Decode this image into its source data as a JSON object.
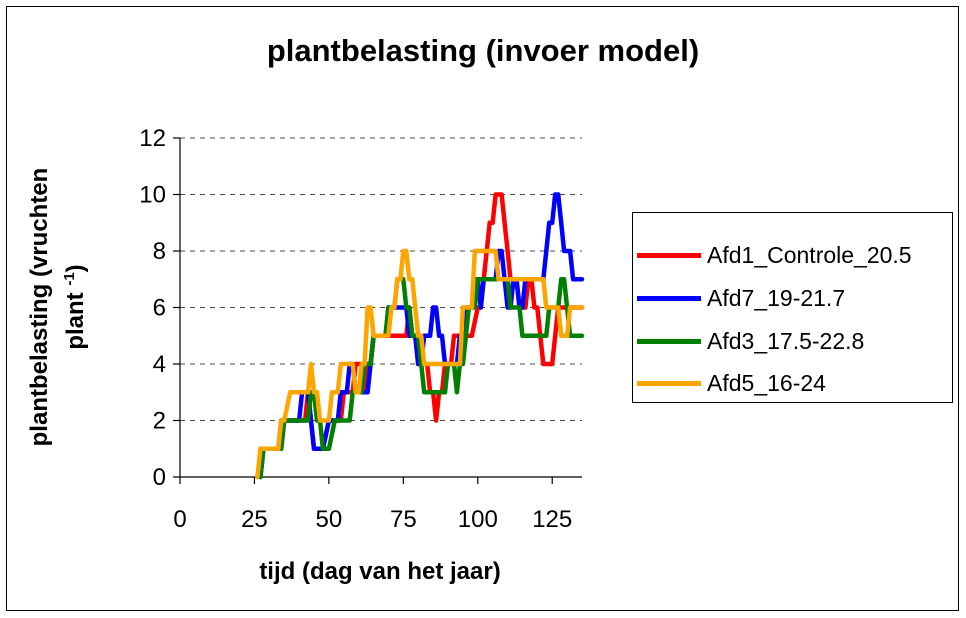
{
  "chart_data": {
    "type": "line",
    "title": "plantbelasting (invoer model)",
    "xlabel": "tijd (dag van het jaar)",
    "ylabel_line1": "plantbelasting (vruchten",
    "ylabel_line2": "plant",
    "ylabel_sup": "-1",
    "ylabel_end": ")",
    "xlim": [
      0,
      135
    ],
    "ylim": [
      0,
      12
    ],
    "xticks": [
      0,
      25,
      50,
      75,
      100,
      125
    ],
    "yticks": [
      0,
      2,
      4,
      6,
      8,
      10,
      12
    ],
    "grid": "horizontal-dashed",
    "legend_position": "right",
    "series": [
      {
        "name": "Afd1_Controle_20.5",
        "color": "#ff0000",
        "x": [
          27,
          28,
          29,
          34,
          35,
          36,
          42,
          43,
          44,
          45,
          46,
          47,
          48,
          50,
          52,
          54,
          55,
          56,
          57,
          58,
          59,
          60,
          61,
          62,
          63,
          64,
          65,
          66,
          67,
          68,
          69,
          71,
          72,
          73,
          74,
          75,
          76,
          77,
          78,
          79,
          80,
          81,
          82,
          83,
          84,
          85,
          86,
          87,
          88,
          89,
          90,
          91,
          92,
          93,
          94,
          96,
          97,
          98,
          100,
          101,
          102,
          103,
          104,
          105,
          106,
          107,
          108,
          109,
          110,
          111,
          112,
          113,
          114,
          115,
          116,
          117,
          118,
          119,
          120,
          121,
          122,
          123,
          124,
          125,
          126,
          127,
          128,
          129,
          130,
          131,
          132,
          133,
          134,
          135
        ],
        "y": [
          0,
          1,
          1,
          1,
          2,
          2,
          2,
          3,
          2,
          1,
          1,
          1,
          1,
          2,
          2,
          2,
          3,
          3,
          3,
          3,
          4,
          4,
          4,
          3,
          4,
          4,
          5,
          5,
          5,
          5,
          5,
          5,
          5,
          5,
          5,
          5,
          5,
          6,
          5,
          5,
          4,
          4,
          4,
          4,
          3,
          3,
          2,
          3,
          3,
          4,
          4,
          4,
          5,
          5,
          5,
          5,
          5,
          5,
          6,
          6,
          7,
          8,
          9,
          9,
          10,
          10,
          10,
          9,
          8,
          7,
          7,
          7,
          6,
          6,
          6,
          7,
          7,
          6,
          6,
          5,
          4,
          4,
          4,
          4,
          5,
          6,
          6,
          6,
          6,
          6,
          6,
          6,
          6,
          6
        ]
      },
      {
        "name": "Afd7_19-21.7",
        "color": "#0000ff",
        "x": [
          27,
          28,
          29,
          33,
          34,
          35,
          40,
          41,
          42,
          43,
          44,
          45,
          46,
          47,
          48,
          50,
          52,
          53,
          54,
          55,
          56,
          57,
          58,
          59,
          60,
          61,
          62,
          63,
          64,
          65,
          66,
          67,
          68,
          69,
          70,
          71,
          72,
          73,
          74,
          75,
          76,
          77,
          78,
          79,
          80,
          81,
          82,
          83,
          84,
          85,
          86,
          87,
          88,
          89,
          90,
          91,
          92,
          93,
          94,
          95,
          96,
          98,
          99,
          100,
          101,
          102,
          103,
          104,
          105,
          106,
          107,
          108,
          109,
          110,
          111,
          112,
          113,
          114,
          115,
          116,
          117,
          118,
          119,
          120,
          121,
          122,
          123,
          124,
          125,
          126,
          127,
          128,
          129,
          130,
          131,
          132,
          133,
          134,
          135
        ],
        "y": [
          0,
          1,
          1,
          1,
          2,
          2,
          2,
          3,
          3,
          3,
          2,
          1,
          1,
          1,
          1,
          2,
          2,
          2,
          3,
          3,
          3,
          4,
          4,
          3,
          3,
          3,
          3,
          3,
          4,
          5,
          5,
          5,
          5,
          5,
          6,
          6,
          6,
          6,
          6,
          6,
          6,
          5,
          5,
          5,
          4,
          4,
          5,
          5,
          5,
          6,
          6,
          5,
          5,
          4,
          4,
          4,
          4,
          4,
          5,
          5,
          6,
          6,
          7,
          7,
          6,
          7,
          7,
          7,
          7,
          7,
          8,
          8,
          7,
          6,
          6,
          7,
          7,
          6,
          6,
          7,
          7,
          7,
          7,
          7,
          7,
          7,
          8,
          9,
          9,
          10,
          10,
          9,
          8,
          8,
          8,
          7,
          7,
          7,
          7
        ]
      },
      {
        "name": "Afd3_17.5-22.8",
        "color": "#008000",
        "x": [
          27,
          28,
          29,
          34,
          35,
          36,
          40,
          41,
          42,
          43,
          44,
          45,
          46,
          47,
          48,
          49,
          50,
          52,
          53,
          54,
          55,
          56,
          57,
          58,
          60,
          61,
          62,
          63,
          64,
          65,
          66,
          67,
          68,
          69,
          70,
          71,
          72,
          73,
          74,
          75,
          76,
          77,
          78,
          79,
          80,
          81,
          82,
          83,
          84,
          85,
          86,
          87,
          88,
          89,
          90,
          91,
          92,
          93,
          94,
          95,
          96,
          97,
          98,
          99,
          100,
          101,
          102,
          103,
          104,
          105,
          106,
          107,
          108,
          109,
          110,
          111,
          112,
          113,
          114,
          115,
          116,
          117,
          118,
          119,
          120,
          121,
          122,
          123,
          124,
          125,
          126,
          127,
          128,
          129,
          130,
          131,
          132,
          133,
          134,
          135
        ],
        "y": [
          0,
          1,
          1,
          1,
          2,
          2,
          2,
          2,
          2,
          2,
          3,
          3,
          2,
          2,
          1,
          1,
          1,
          2,
          2,
          2,
          2,
          2,
          2,
          3,
          3,
          3,
          4,
          4,
          4,
          5,
          5,
          5,
          5,
          5,
          6,
          6,
          6,
          7,
          7,
          7,
          6,
          6,
          5,
          5,
          5,
          4,
          3,
          3,
          3,
          3,
          3,
          3,
          3,
          3,
          4,
          4,
          4,
          3,
          4,
          4,
          5,
          6,
          6,
          6,
          7,
          7,
          7,
          7,
          7,
          7,
          7,
          7,
          7,
          7,
          7,
          6,
          6,
          6,
          6,
          5,
          5,
          5,
          5,
          5,
          5,
          5,
          5,
          5,
          6,
          6,
          6,
          6,
          7,
          7,
          6,
          5,
          5,
          5,
          5,
          5
        ]
      },
      {
        "name": "Afd5_16-24",
        "color": "#ffa500",
        "x": [
          26,
          27,
          28,
          33,
          34,
          35,
          37,
          38,
          39,
          40,
          41,
          42,
          43,
          44,
          45,
          46,
          47,
          48,
          49,
          50,
          51,
          52,
          53,
          54,
          55,
          56,
          57,
          58,
          59,
          60,
          61,
          62,
          63,
          64,
          65,
          66,
          67,
          68,
          69,
          70,
          71,
          72,
          73,
          74,
          75,
          76,
          77,
          78,
          79,
          80,
          81,
          82,
          83,
          84,
          85,
          86,
          87,
          88,
          89,
          90,
          91,
          92,
          93,
          94,
          95,
          96,
          97,
          98,
          99,
          100,
          101,
          102,
          103,
          104,
          105,
          106,
          107,
          108,
          109,
          110,
          111,
          112,
          113,
          114,
          115,
          116,
          117,
          118,
          119,
          120,
          121,
          122,
          123,
          124,
          125,
          126,
          127,
          128,
          129,
          130,
          131,
          132,
          133,
          134,
          135
        ],
        "y": [
          0,
          1,
          1,
          1,
          2,
          2,
          3,
          3,
          3,
          3,
          3,
          3,
          3,
          4,
          3,
          3,
          2,
          2,
          2,
          2,
          3,
          3,
          3,
          4,
          4,
          4,
          4,
          4,
          3,
          3,
          4,
          4,
          6,
          6,
          5,
          5,
          5,
          5,
          5,
          5,
          6,
          6,
          7,
          7,
          8,
          8,
          7,
          7,
          6,
          5,
          5,
          4,
          4,
          4,
          4,
          4,
          4,
          4,
          4,
          4,
          4,
          4,
          4,
          4,
          6,
          6,
          6,
          6,
          8,
          8,
          8,
          8,
          8,
          8,
          8,
          8,
          7,
          7,
          7,
          7,
          7,
          7,
          7,
          7,
          7,
          7,
          7,
          7,
          7,
          7,
          7,
          7,
          6,
          6,
          6,
          6,
          6,
          5,
          5,
          5,
          6,
          6,
          6,
          6,
          6
        ]
      }
    ]
  }
}
